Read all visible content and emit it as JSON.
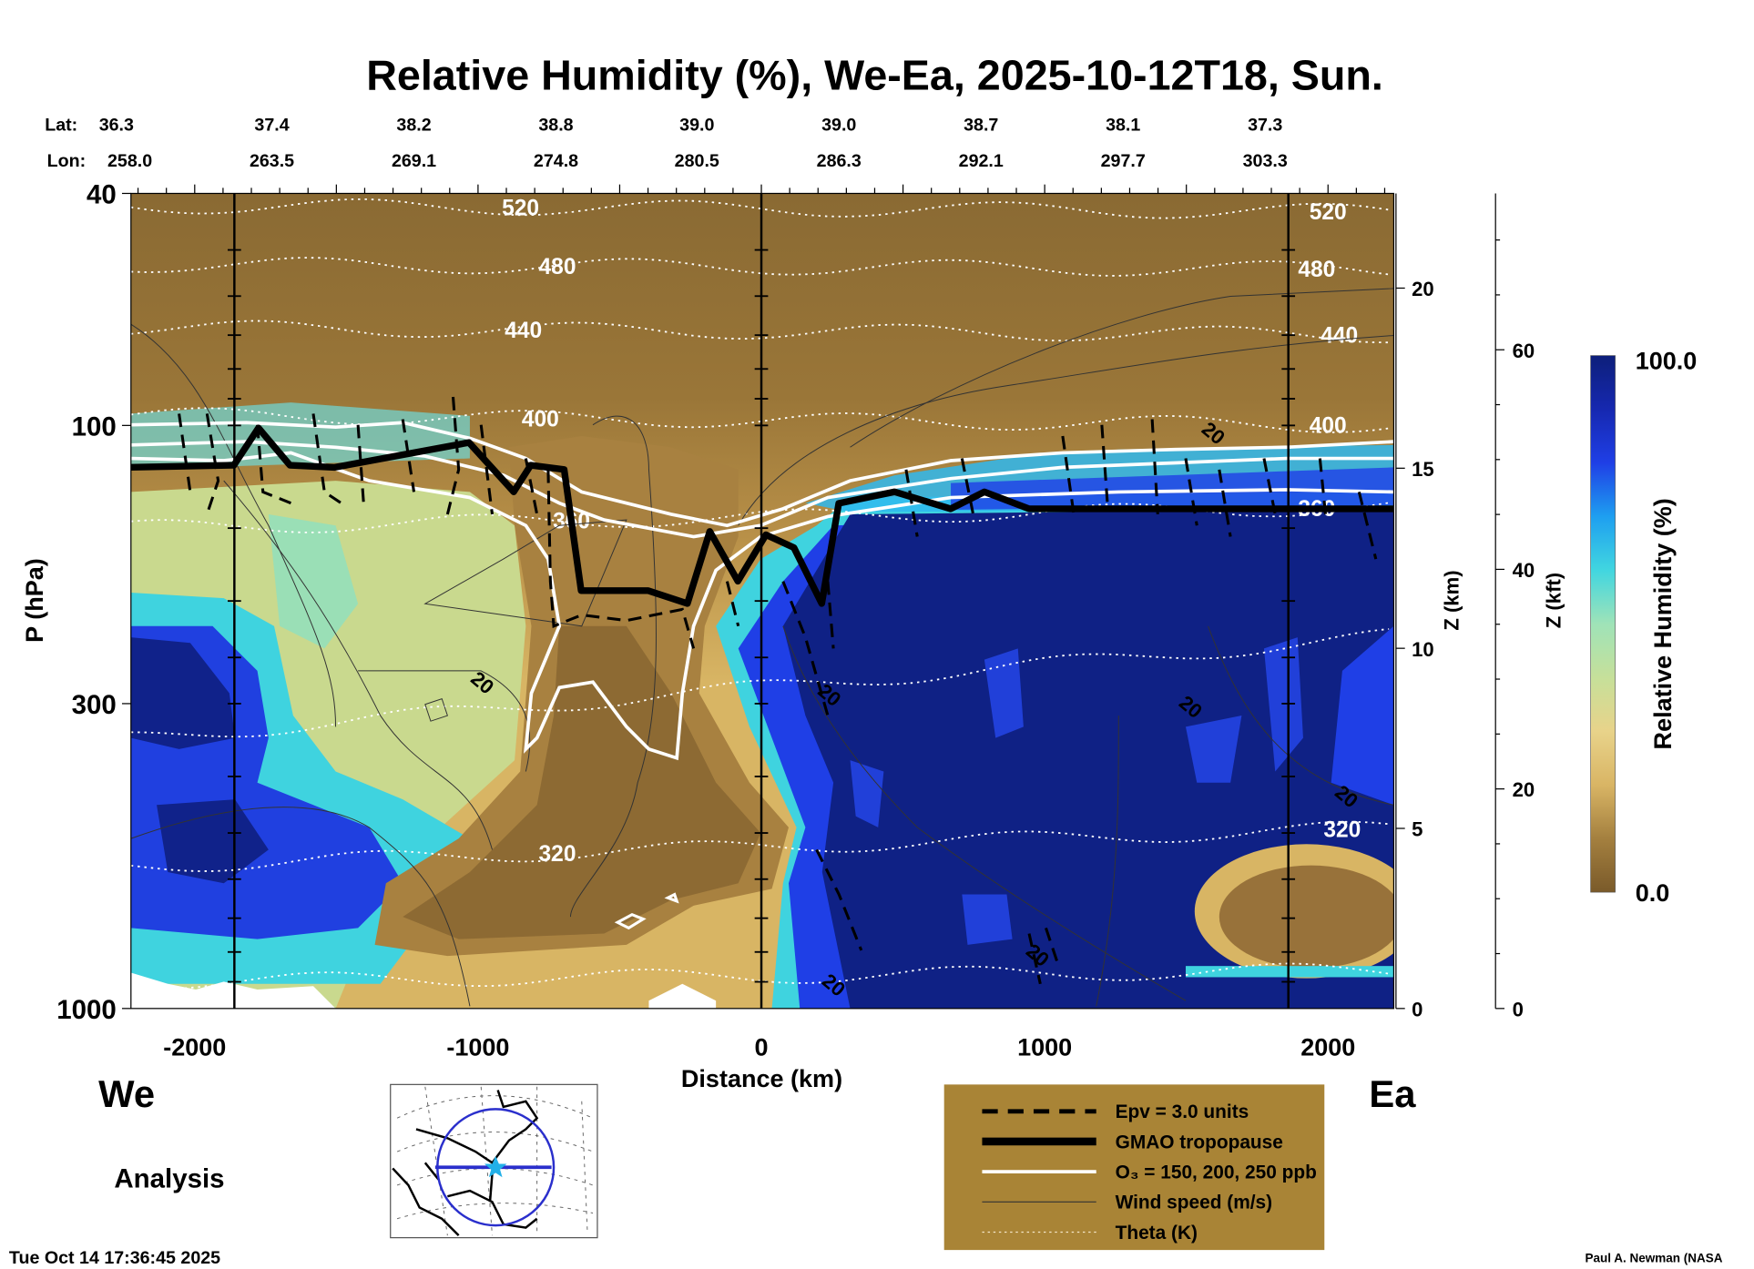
{
  "title": "Relative Humidity (%), We-Ea, 2025-10-12T18, Sun.",
  "coords": {
    "lat_label": "Lat:",
    "lon_label": "Lon:",
    "lats": [
      "36.3",
      "37.4",
      "38.2",
      "38.8",
      "39.0",
      "39.0",
      "38.7",
      "38.1",
      "37.3"
    ],
    "lons": [
      "258.0",
      "263.5",
      "269.1",
      "274.8",
      "280.5",
      "286.3",
      "292.1",
      "297.7",
      "303.3"
    ]
  },
  "chart_data": {
    "type": "heatmap",
    "title": "Relative Humidity (%), We-Ea, 2025-10-12T18, Sun.",
    "xlabel": "Distance (km)",
    "ylabel": "P (hPa)",
    "xlim": [
      -2225,
      2232
    ],
    "ylim": [
      1000,
      40
    ],
    "yscale": "log",
    "xticks": [
      "-2000",
      "-1000",
      "0",
      "1000",
      "2000"
    ],
    "xtick_values": [
      -2000,
      -1000,
      0,
      1000,
      2000
    ],
    "yticks": [
      "40",
      "100",
      "300",
      "1000"
    ],
    "ytick_values": [
      40,
      100,
      300,
      1000
    ],
    "section_markers_km": [
      -1860,
      0,
      1860
    ],
    "z_km_axis": {
      "label": "Z (km)",
      "ticks": [
        "0",
        "5",
        "10",
        "15",
        "20"
      ],
      "values": [
        0,
        5,
        10,
        15,
        20
      ]
    },
    "z_kft_axis": {
      "label": "Z (kft)",
      "ticks": [
        "0",
        "20",
        "40",
        "60"
      ],
      "values": [
        0,
        20,
        40,
        60
      ]
    },
    "colorbar": {
      "label": "Relative Humidity (%)",
      "min_label": "0.0",
      "max_label": "100.0",
      "min": 0,
      "max": 100,
      "colors": [
        "#7a5a2a",
        "#a4803f",
        "#d9b565",
        "#e8d38a",
        "#c6e09a",
        "#9fe3b8",
        "#41d6e0",
        "#1e9ff0",
        "#1f3fe6",
        "#1628b0",
        "#0d1f7a"
      ]
    },
    "tropopause_km_hpa": [
      [
        -2229,
        118
      ],
      [
        -1862,
        117
      ],
      [
        -1775,
        101
      ],
      [
        -1664,
        117
      ],
      [
        -1506,
        118
      ],
      [
        -1032,
        107
      ],
      [
        -874,
        130
      ],
      [
        -814,
        117
      ],
      [
        -696,
        119
      ],
      [
        -636,
        192
      ],
      [
        -399,
        192
      ],
      [
        -261,
        202
      ],
      [
        -182,
        152
      ],
      [
        -83,
        185
      ],
      [
        16,
        154
      ],
      [
        115,
        162
      ],
      [
        213,
        202
      ],
      [
        273,
        136
      ],
      [
        470,
        130
      ],
      [
        668,
        139
      ],
      [
        787,
        130
      ],
      [
        945,
        139
      ],
      [
        2233,
        139
      ]
    ],
    "theta_contours": [
      {
        "level": "520",
        "p_west": 42,
        "p_east": 43,
        "label_km": [
          -850,
          2000
        ]
      },
      {
        "level": "480",
        "p_west": 53,
        "p_east": 54,
        "label_km": [
          -720,
          1960
        ]
      },
      {
        "level": "440",
        "p_west": 68,
        "p_east": 70,
        "label_km": [
          -840,
          2040
        ]
      },
      {
        "level": "400",
        "p_west": 96,
        "p_east": 100,
        "label_km": [
          -780,
          2000
        ]
      },
      {
        "level": "360",
        "p_west": 150,
        "p_east": 138,
        "label_km": [
          -670,
          1960
        ]
      },
      {
        "level": "",
        "p_west": 345,
        "p_east": 230,
        "label_km": []
      },
      {
        "level": "320",
        "p_west": 570,
        "p_east": 490,
        "label_km": [
          -720,
          2050
        ]
      },
      {
        "level": "",
        "p_west": 900,
        "p_east": 860,
        "label_km": []
      }
    ],
    "wind_labels": [
      {
        "text": "20",
        "km": -1000,
        "p": 300
      },
      {
        "text": "20",
        "km": 225,
        "p": 315
      },
      {
        "text": "20",
        "km": 1580,
        "p": 112
      },
      {
        "text": "20",
        "km": 1500,
        "p": 330
      },
      {
        "text": "20",
        "km": 2050,
        "p": 470
      },
      {
        "text": "20",
        "km": 240,
        "p": 990
      },
      {
        "text": "20",
        "km": 960,
        "p": 880
      }
    ],
    "legend": [
      {
        "style": "dashed",
        "label": "Epv = 3.0 units"
      },
      {
        "style": "thick",
        "label": "GMAO tropopause"
      },
      {
        "style": "white",
        "label": "O₃ = 150, 200, 250 ppb"
      },
      {
        "style": "thin",
        "label": "Wind speed (m/s)"
      },
      {
        "style": "dotted",
        "label": "Theta (K)"
      }
    ],
    "legend_bg": "#a98436"
  },
  "labels": {
    "west": "We",
    "east": "Ea",
    "analysis": "Analysis",
    "timestamp": "Tue Oct 14 17:36:45 2025",
    "credit": "Paul A. Newman (NASA"
  }
}
